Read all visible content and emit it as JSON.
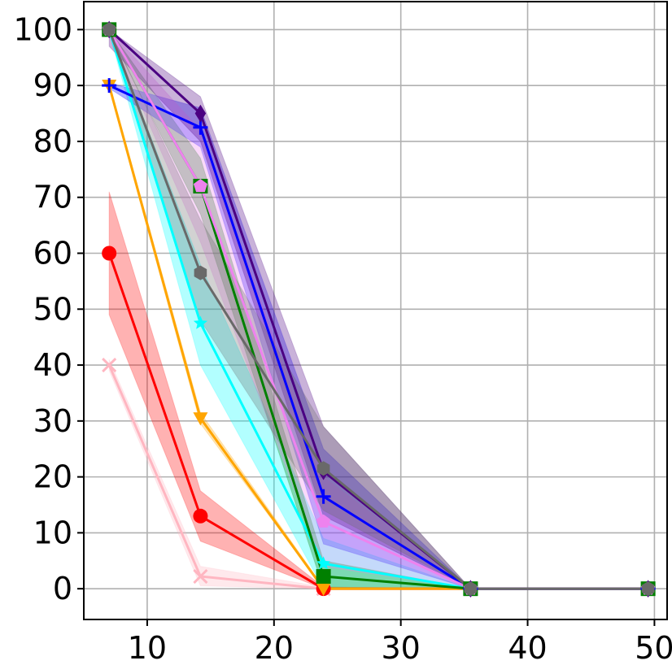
{
  "chart_data": {
    "type": "line",
    "title": "",
    "xlabel": "",
    "ylabel": "",
    "xlim": [
      5,
      51
    ],
    "ylim": [
      -5.5,
      105
    ],
    "grid": true,
    "legend": "none",
    "x_ticks": [
      10,
      20,
      30,
      40,
      50
    ],
    "y_ticks": [
      0,
      10,
      20,
      30,
      40,
      50,
      60,
      70,
      80,
      90,
      100
    ],
    "x_tick_labels": [
      "10",
      "20",
      "30",
      "40",
      "50"
    ],
    "y_tick_labels": [
      "0",
      "10",
      "20",
      "30",
      "40",
      "50",
      "60",
      "70",
      "80",
      "90",
      "100"
    ],
    "x": [
      7,
      14.2,
      23.9,
      35.5,
      49.5
    ],
    "series": [
      {
        "color": "#ffb6c1",
        "marker": "x",
        "values": [
          40,
          2.2,
          0,
          0,
          0
        ],
        "band": [
          [
            39,
            41
          ],
          [
            0.5,
            4
          ],
          [
            0,
            0.3
          ],
          [
            0,
            0
          ],
          [
            0,
            0
          ]
        ]
      },
      {
        "color": "#ff0000",
        "marker": "circle",
        "values": [
          60,
          13,
          0,
          0,
          0
        ],
        "band": [
          [
            49,
            71
          ],
          [
            8.5,
            17.5
          ],
          [
            0,
            0.3
          ],
          [
            0,
            0
          ],
          [
            0,
            0
          ]
        ]
      },
      {
        "color": "#ffa500",
        "marker": "triangle-down",
        "values": [
          90,
          30.5,
          0,
          0,
          0
        ],
        "band": [
          [
            89.5,
            90.5
          ],
          [
            29.5,
            31.5
          ],
          [
            0,
            0.3
          ],
          [
            0,
            0
          ],
          [
            0,
            0
          ]
        ]
      },
      {
        "color": "#00ffff",
        "marker": "star",
        "values": [
          100,
          47.5,
          4.5,
          0,
          0
        ],
        "band": [
          [
            99.5,
            100
          ],
          [
            40,
            58
          ],
          [
            0,
            9
          ],
          [
            0,
            0
          ],
          [
            0,
            0
          ]
        ]
      },
      {
        "color": "#008000",
        "marker": "square",
        "values": [
          100,
          72,
          2.2,
          0,
          0
        ],
        "band": [
          [
            99.5,
            100
          ],
          [
            67,
            77
          ],
          [
            0,
            5
          ],
          [
            0,
            0
          ],
          [
            0,
            0
          ]
        ]
      },
      {
        "color": "#0000ff",
        "marker": "plus",
        "values": [
          90,
          82.5,
          16.5,
          0,
          0
        ],
        "band": [
          [
            89.5,
            90.5
          ],
          [
            79,
            86
          ],
          [
            8,
            25
          ],
          [
            0,
            0
          ],
          [
            0,
            0
          ]
        ]
      },
      {
        "color": "#ee82ee",
        "marker": "pentagon",
        "values": [
          100,
          72,
          12,
          0,
          0
        ],
        "band": [
          [
            99.5,
            100
          ],
          [
            62,
            82
          ],
          [
            4,
            20
          ],
          [
            0,
            0
          ],
          [
            0,
            0
          ]
        ]
      },
      {
        "color": "#4b0082",
        "marker": "diamond",
        "values": [
          100,
          85,
          21,
          0,
          0
        ],
        "band": [
          [
            97,
            100
          ],
          [
            80,
            88
          ],
          [
            13,
            29
          ],
          [
            0,
            0
          ],
          [
            0,
            0
          ]
        ]
      },
      {
        "color": "#696969",
        "marker": "hexagon",
        "values": [
          100,
          56.5,
          21.5,
          0,
          0
        ],
        "band": [
          [
            99.5,
            100
          ],
          [
            48,
            66
          ],
          [
            14,
            29
          ],
          [
            0,
            0
          ],
          [
            0,
            0
          ]
        ]
      }
    ]
  }
}
